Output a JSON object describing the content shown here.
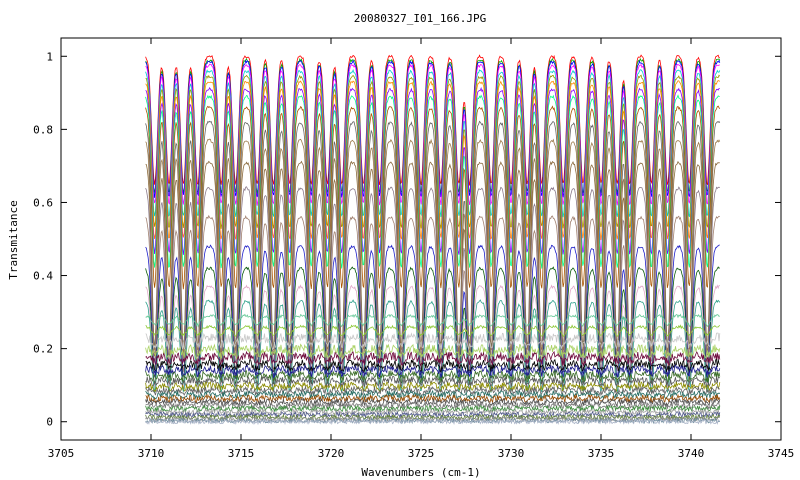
{
  "chart_data": {
    "type": "line",
    "title": "20080327_I01_166.JPG",
    "xlabel": "Wavenumbers (cm-1)",
    "ylabel": "Transmitance",
    "xlim": [
      3705,
      3745
    ],
    "ylim": [
      -0.05,
      1.05
    ],
    "x_ticks": [
      3705,
      3710,
      3715,
      3720,
      3725,
      3730,
      3735,
      3740,
      3745
    ],
    "y_ticks": [
      0,
      0.2,
      0.4,
      0.6,
      0.8,
      1
    ],
    "x_range_of_series": [
      3709.7,
      3741.6
    ],
    "grid": false,
    "legend": "none",
    "absorption_line_positions": [
      3710.2,
      3711.0,
      3711.8,
      3712.6,
      3713.9,
      3714.7,
      3715.9,
      3716.8,
      3717.7,
      3718.9,
      3719.8,
      3720.6,
      3721.8,
      3722.7,
      3723.9,
      3725.0,
      3726.1,
      3727.1,
      3727.7,
      3728.9,
      3730.0,
      3730.9,
      3731.7,
      3732.9,
      3734.0,
      3735.0,
      3735.9,
      3736.6,
      3737.8,
      3738.7,
      3739.9,
      3740.9
    ],
    "series_baselines": [
      1.0,
      0.99,
      0.985,
      0.975,
      0.96,
      0.945,
      0.93,
      0.91,
      0.89,
      0.86,
      0.82,
      0.77,
      0.71,
      0.64,
      0.56,
      0.48,
      0.42,
      0.37,
      0.33,
      0.29,
      0.26,
      0.23,
      0.2,
      0.18,
      0.16,
      0.145,
      0.13,
      0.115,
      0.1,
      0.088,
      0.077,
      0.066,
      0.056,
      0.046,
      0.037,
      0.028,
      0.02,
      0.013,
      0.007,
      0.003,
      0.0
    ],
    "series_colors": [
      "#ff0000",
      "#00aa00",
      "#0000ff",
      "#ff00ff",
      "#00cccc",
      "#999900",
      "#ff8800",
      "#8800ff",
      "#00ff88",
      "#aa5500",
      "#666666",
      "#9c7b4c",
      "#8b6b3e",
      "#8b7b8b",
      "#a08070",
      "#1e1ec8",
      "#0a5a0a",
      "#e0a8c8",
      "#2ea08c",
      "#64c896",
      "#8cc832",
      "#c8c8c8",
      "#aad264",
      "#6e0a3c",
      "#000000",
      "#1e1e8c",
      "#3c6e28",
      "#5a5a5a",
      "#8c8c00",
      "#646464",
      "#286e64",
      "#964b00",
      "#505050",
      "#787878",
      "#3c8c3c",
      "#a0a0a0",
      "#505a8c",
      "#64823c",
      "#8c8c8c",
      "#6e8c9c",
      "#aab4c8"
    ]
  }
}
